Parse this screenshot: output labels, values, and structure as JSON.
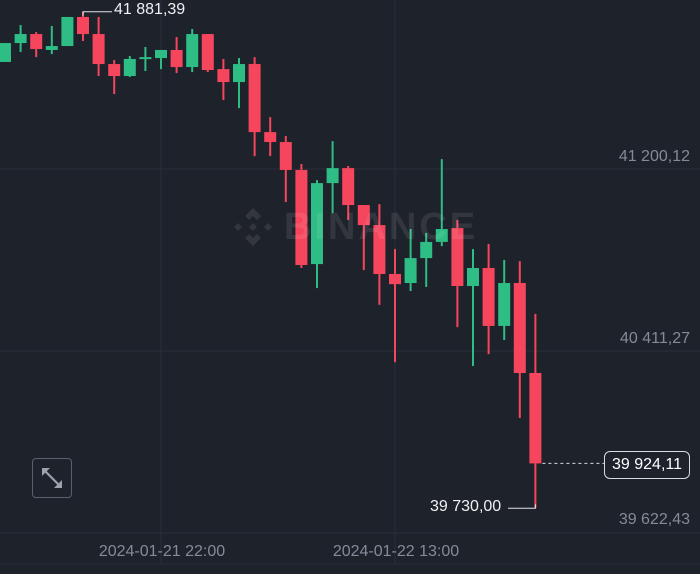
{
  "watermark": "BINANCE",
  "colors": {
    "up": "#2ebd85",
    "down": "#f6465d",
    "background": "#1e222b",
    "grid": "#2a2e38",
    "axis_text": "#848b98"
  },
  "expand_icon": "expand-arrows-icon",
  "chart_data": {
    "type": "candlestick",
    "interval": "1h",
    "y_ticks": [
      "41 200,12",
      "40 411,27",
      "39 622,43"
    ],
    "y_tick_values": [
      41200.12,
      40411.27,
      39622.43
    ],
    "x_ticks": [
      "2024-01-21 22:00",
      "2024-01-22 13:00"
    ],
    "ylim": [
      39622.43,
      41900
    ],
    "grid": true,
    "high_label": "41 881,39",
    "low_label": "39 730,00",
    "last_price_label": "39 924,11",
    "last_price": 39924.11,
    "candles": [
      {
        "t": "2024-01-21 12:00",
        "o": 41664,
        "h": 41746,
        "l": 41664,
        "c": 41746
      },
      {
        "t": "2024-01-21 13:00",
        "o": 41746,
        "h": 41824,
        "l": 41707,
        "c": 41785
      },
      {
        "t": "2024-01-21 14:00",
        "o": 41785,
        "h": 41794,
        "l": 41685,
        "c": 41720
      },
      {
        "t": "2024-01-21 15:00",
        "o": 41716,
        "h": 41820,
        "l": 41698,
        "c": 41733
      },
      {
        "t": "2024-01-21 16:00",
        "o": 41733,
        "h": 41859,
        "l": 41733,
        "c": 41859
      },
      {
        "t": "2024-01-21 17:00",
        "o": 41859,
        "h": 41881.39,
        "l": 41755,
        "c": 41785
      },
      {
        "t": "2024-01-21 18:00",
        "o": 41785,
        "h": 41859,
        "l": 41603,
        "c": 41655
      },
      {
        "t": "2024-01-21 19:00",
        "o": 41655,
        "h": 41672,
        "l": 41525,
        "c": 41603
      },
      {
        "t": "2024-01-21 20:00",
        "o": 41603,
        "h": 41690,
        "l": 41599,
        "c": 41677
      },
      {
        "t": "2024-01-21 21:00",
        "o": 41677,
        "h": 41729,
        "l": 41625,
        "c": 41685
      },
      {
        "t": "2024-01-21 22:00",
        "o": 41681,
        "h": 41716,
        "l": 41633,
        "c": 41716
      },
      {
        "t": "2024-01-21 23:00",
        "o": 41716,
        "h": 41772,
        "l": 41616,
        "c": 41642
      },
      {
        "t": "2024-01-22 00:00",
        "o": 41642,
        "h": 41807,
        "l": 41620,
        "c": 41785
      },
      {
        "t": "2024-01-22 01:00",
        "o": 41785,
        "h": 41785,
        "l": 41620,
        "c": 41629
      },
      {
        "t": "2024-01-22 02:00",
        "o": 41633,
        "h": 41677,
        "l": 41499,
        "c": 41577
      },
      {
        "t": "2024-01-22 03:00",
        "o": 41577,
        "h": 41681,
        "l": 41464,
        "c": 41655
      },
      {
        "t": "2024-01-22 04:00",
        "o": 41655,
        "h": 41685,
        "l": 41256,
        "c": 41360
      },
      {
        "t": "2024-01-22 05:00",
        "o": 41360,
        "h": 41425,
        "l": 41256,
        "c": 41317
      },
      {
        "t": "2024-01-22 06:00",
        "o": 41317,
        "h": 41343,
        "l": 41057,
        "c": 41196
      },
      {
        "t": "2024-01-22 07:00",
        "o": 41196,
        "h": 41222,
        "l": 40771,
        "c": 40784
      },
      {
        "t": "2024-01-22 08:00",
        "o": 40788,
        "h": 41152,
        "l": 40684,
        "c": 41139
      },
      {
        "t": "2024-01-22 09:00",
        "o": 41139,
        "h": 41321,
        "l": 41009,
        "c": 41204
      },
      {
        "t": "2024-01-22 10:00",
        "o": 41204,
        "h": 41213,
        "l": 40979,
        "c": 41044
      },
      {
        "t": "2024-01-22 11:00",
        "o": 41044,
        "h": 41044,
        "l": 40762,
        "c": 40957
      },
      {
        "t": "2024-01-22 12:00",
        "o": 40957,
        "h": 41048,
        "l": 40611,
        "c": 40745
      },
      {
        "t": "2024-01-22 13:00",
        "o": 40745,
        "h": 40853,
        "l": 40363,
        "c": 40701
      },
      {
        "t": "2024-01-22 14:00",
        "o": 40706,
        "h": 40940,
        "l": 40671,
        "c": 40814
      },
      {
        "t": "2024-01-22 15:00",
        "o": 40814,
        "h": 40923,
        "l": 40689,
        "c": 40884
      },
      {
        "t": "2024-01-22 16:00",
        "o": 40884,
        "h": 41243,
        "l": 40866,
        "c": 40940
      },
      {
        "t": "2024-01-22 17:00",
        "o": 40944,
        "h": 40979,
        "l": 40515,
        "c": 40693
      },
      {
        "t": "2024-01-22 18:00",
        "o": 40693,
        "h": 40853,
        "l": 40346,
        "c": 40771
      },
      {
        "t": "2024-01-22 19:00",
        "o": 40771,
        "h": 40875,
        "l": 40398,
        "c": 40520
      },
      {
        "t": "2024-01-22 20:00",
        "o": 40520,
        "h": 40806,
        "l": 40459,
        "c": 40706
      },
      {
        "t": "2024-01-22 21:00",
        "o": 40706,
        "h": 40801,
        "l": 40121,
        "c": 40316
      },
      {
        "t": "2024-01-22 22:00",
        "o": 40316,
        "h": 40572,
        "l": 39730,
        "c": 39924.11
      }
    ]
  }
}
